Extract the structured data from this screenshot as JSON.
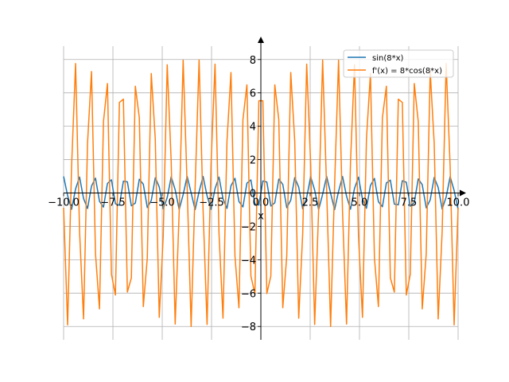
{
  "chart_data": {
    "type": "line",
    "title": "",
    "xlabel": "x",
    "ylabel": "",
    "xlim": [
      -10,
      10
    ],
    "ylim": [
      -8.8,
      8.8
    ],
    "x_ticks": [
      -10.0,
      -7.5,
      -5.0,
      -2.5,
      0.0,
      2.5,
      5.0,
      7.5,
      10.0
    ],
    "x_tick_labels": [
      "−10.0",
      "−7.5",
      "−5.0",
      "−2.5",
      "0.0",
      "2.5",
      "5.0",
      "7.5",
      "10.0"
    ],
    "y_ticks": [
      -8,
      -6,
      -4,
      -2,
      0,
      2,
      4,
      6,
      8
    ],
    "y_tick_labels": [
      "−8",
      "−6",
      "−4",
      "−2",
      "0",
      "2",
      "4",
      "6",
      "8"
    ],
    "grid": true,
    "legend_position": "top-right",
    "sample_count": 100,
    "series": [
      {
        "name": "sin(8*x)",
        "color": "#1f77b4",
        "function": "sin(8*x)"
      },
      {
        "name": "f'(x) = 8*cos(8*x)",
        "color": "#ff7f0e",
        "function": "8*cos(8*x)"
      }
    ]
  }
}
